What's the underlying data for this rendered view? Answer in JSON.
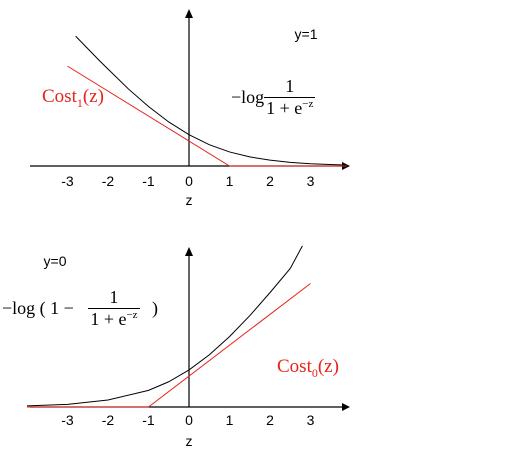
{
  "chart_data": [
    {
      "type": "line",
      "case_label": "y=1",
      "xlabel": "z",
      "xlim": [
        -4,
        4
      ],
      "ticks": [
        "-3",
        "-2",
        "-1",
        "0",
        "1",
        "2",
        "3"
      ],
      "tick_values": [
        -3,
        -2,
        -1,
        0,
        1,
        2,
        3
      ],
      "series": [
        {
          "name": "−log 1/(1 + e^−z)",
          "color": "#000000",
          "x": [
            -2.8,
            -2.2,
            -1.5,
            -1,
            -0.5,
            0,
            0.5,
            1,
            1.5,
            2,
            2.5,
            3,
            3.9
          ],
          "y": [
            2.86,
            2.31,
            1.7,
            1.31,
            0.97,
            0.69,
            0.47,
            0.31,
            0.2,
            0.13,
            0.08,
            0.05,
            0.02
          ]
        },
        {
          "name": "Cost1(z)",
          "color": "#e8231b",
          "x": [
            -3,
            1,
            3.9
          ],
          "y": [
            2.2,
            0,
            0
          ]
        }
      ],
      "labels": {
        "formula_prefix": "−log",
        "formula_num": "1",
        "formula_den": "1 + e",
        "formula_exp": "−z",
        "cost_text": "Cost",
        "cost_sub": "1",
        "cost_arg": "(z)"
      }
    },
    {
      "type": "line",
      "case_label": "y=0",
      "xlabel": "z",
      "xlim": [
        -4,
        4
      ],
      "ticks": [
        "-3",
        "-2",
        "-1",
        "0",
        "1",
        "2",
        "3"
      ],
      "tick_values": [
        -3,
        -2,
        -1,
        0,
        1,
        2,
        3
      ],
      "series": [
        {
          "name": "−log(1 − 1/(1 + e^−z))",
          "color": "#000000",
          "x": [
            -4,
            -3,
            -2,
            -1,
            -0.5,
            0,
            0.5,
            1,
            1.5,
            2,
            2.5,
            2.8
          ],
          "y": [
            0.02,
            0.05,
            0.13,
            0.31,
            0.47,
            0.69,
            0.97,
            1.31,
            1.7,
            2.13,
            2.58,
            3.0
          ]
        },
        {
          "name": "Cost0(z)",
          "color": "#e8231b",
          "x": [
            -4,
            -1,
            3
          ],
          "y": [
            0,
            0,
            2.3
          ]
        }
      ],
      "labels": {
        "formula_prefix": "−log ( 1 −",
        "formula_num": "1",
        "formula_den": "1 + e",
        "formula_exp": "−z",
        "formula_close": ")",
        "cost_text": "Cost",
        "cost_sub": "0",
        "cost_arg": "(z)"
      }
    }
  ]
}
